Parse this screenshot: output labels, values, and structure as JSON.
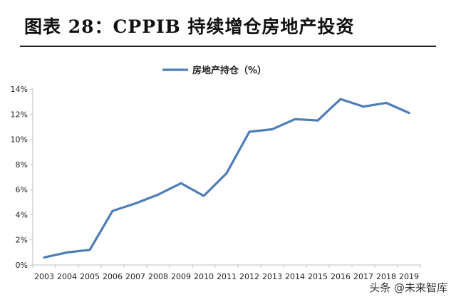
{
  "page": {
    "title": "图表 28：CPPIB 持续增仓房地产投资",
    "watermark": "头条 @未来智库"
  },
  "colors": {
    "series": "#4E7DB8",
    "axis": "#BFBFBF",
    "text": "#222222"
  },
  "chart_data": {
    "type": "line",
    "x": [
      "2003",
      "2004",
      "2005",
      "2006",
      "2007",
      "2008",
      "2009",
      "2010",
      "2011",
      "2012",
      "2013",
      "2014",
      "2015",
      "2016",
      "2017",
      "2018",
      "2019"
    ],
    "series": [
      {
        "name": "房地产持仓（%）",
        "values": [
          0.6,
          1.0,
          1.2,
          4.3,
          4.9,
          5.6,
          6.5,
          5.5,
          7.3,
          10.6,
          10.8,
          11.6,
          11.5,
          13.2,
          12.6,
          12.9,
          12.1
        ]
      }
    ],
    "title": "",
    "xlabel": "",
    "ylabel": "",
    "ylim": [
      0,
      14
    ],
    "yticks": [
      0,
      2,
      4,
      6,
      8,
      10,
      12,
      14
    ],
    "ytick_labels": [
      "0%",
      "2%",
      "4%",
      "6%",
      "8%",
      "10%",
      "12%",
      "14%"
    ],
    "legend_position": "top-center",
    "grid": false
  }
}
